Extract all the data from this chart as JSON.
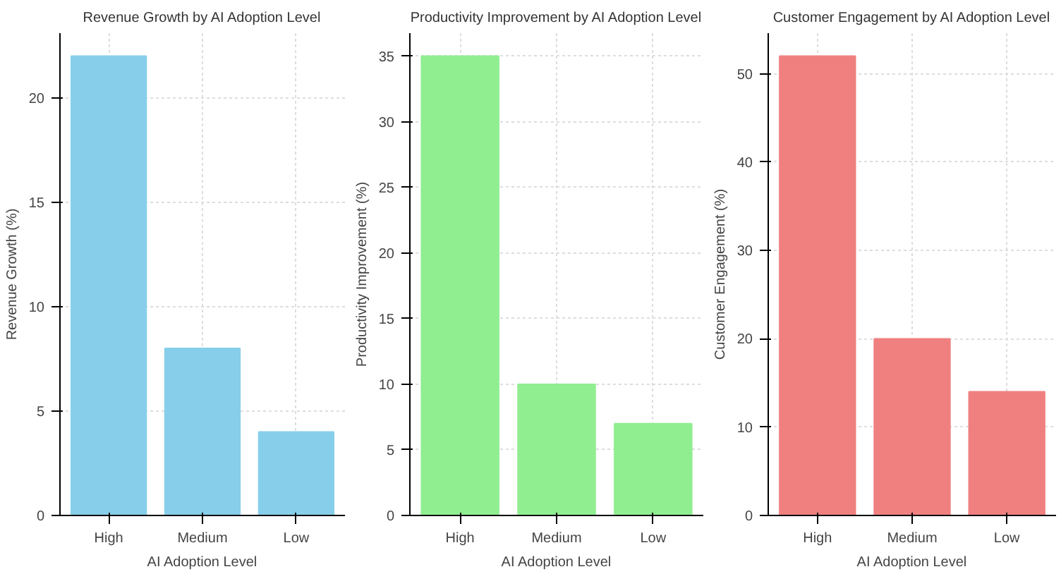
{
  "chart_data": [
    {
      "type": "bar",
      "title": "Revenue Growth by AI Adoption Level",
      "xlabel": "AI Adoption Level",
      "ylabel": "Revenue Growth (%)",
      "categories": [
        "High",
        "Medium",
        "Low"
      ],
      "values": [
        22,
        8,
        4
      ],
      "color": "#87ceeb",
      "ylim": [
        0,
        23.1
      ],
      "yticks": [
        0,
        5,
        10,
        15,
        20
      ],
      "grid": true
    },
    {
      "type": "bar",
      "title": "Productivity Improvement by AI Adoption Level",
      "xlabel": "AI Adoption Level",
      "ylabel": "Productivity Improvement (%)",
      "categories": [
        "High",
        "Medium",
        "Low"
      ],
      "values": [
        35,
        10,
        7
      ],
      "color": "#90ee90",
      "ylim": [
        0,
        36.75
      ],
      "yticks": [
        0,
        5,
        10,
        15,
        20,
        25,
        30,
        35
      ],
      "grid": true
    },
    {
      "type": "bar",
      "title": "Customer Engagement by AI Adoption Level",
      "xlabel": "AI Adoption Level",
      "ylabel": "Customer Engagement (%)",
      "categories": [
        "High",
        "Medium",
        "Low"
      ],
      "values": [
        52,
        20,
        14
      ],
      "color": "#f08080",
      "ylim": [
        0,
        54.6
      ],
      "yticks": [
        0,
        10,
        20,
        30,
        40,
        50
      ],
      "grid": true
    }
  ]
}
